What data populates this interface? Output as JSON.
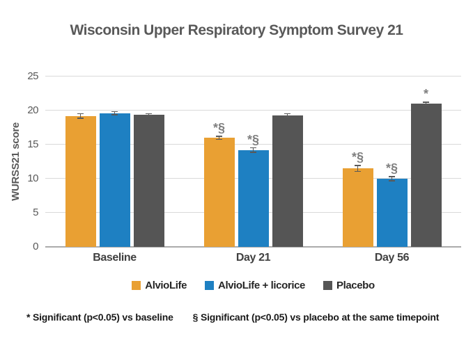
{
  "chart_data": {
    "type": "bar",
    "title": "Wisconsin Upper Respiratory Symptom Survey 21",
    "xlabel": "",
    "ylabel": "WURSS21 score",
    "ylim": [
      0,
      25
    ],
    "yticks": [
      0,
      5,
      10,
      15,
      20,
      25
    ],
    "grid": true,
    "legend_position": "bottom",
    "categories": [
      "Baseline",
      "Day 21",
      "Day 56"
    ],
    "series": [
      {
        "name": "AlvioLife",
        "color": "#E9A033",
        "values": [
          19.2,
          16.0,
          11.5
        ],
        "errors": [
          0.4,
          0.3,
          0.5
        ],
        "sig_markers": [
          "",
          "*§",
          "*§"
        ]
      },
      {
        "name": "AlvioLife + licorice",
        "color": "#1E80C2",
        "values": [
          19.6,
          14.2,
          10.0
        ],
        "errors": [
          0.3,
          0.4,
          0.4
        ],
        "sig_markers": [
          "",
          "*§",
          "*§"
        ]
      },
      {
        "name": "Placebo",
        "color": "#555555",
        "values": [
          19.4,
          19.3,
          21.0
        ],
        "errors": [
          0.2,
          0.3,
          0.3
        ],
        "sig_markers": [
          "",
          "",
          "*"
        ]
      }
    ],
    "footnotes": [
      "* Significant (p<0.05) vs baseline",
      "§ Significant (p<0.05) vs placebo at the same timepoint"
    ]
  }
}
